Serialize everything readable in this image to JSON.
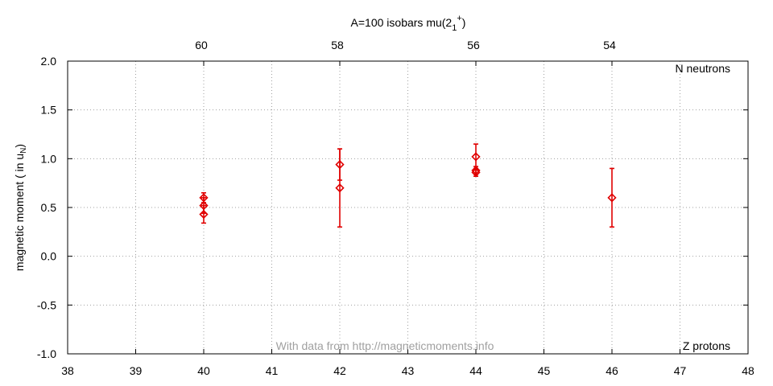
{
  "chart_data": {
    "type": "scatter",
    "title": "A=100 isobars mu(2",
    "title_sub": "1",
    "title_sup": "+",
    "title_close": ")",
    "xlabel": "Z protons",
    "x2label": "N neutrons",
    "ylabel": "magnetic moment ( in u",
    "ylabel_sub": "N",
    "ylabel_close": ")",
    "watermark": "With data from http://magneticmoments.info",
    "xlim": [
      38,
      48
    ],
    "ylim": [
      -1.0,
      2.0
    ],
    "x_ticks": [
      "38",
      "39",
      "40",
      "41",
      "42",
      "43",
      "44",
      "45",
      "46",
      "47",
      "48"
    ],
    "y_ticks": [
      "-1.0",
      "-0.5",
      "0.0",
      "0.5",
      "1.0",
      "1.5",
      "2.0"
    ],
    "x2_ticks": [
      {
        "z": 40,
        "label": "60"
      },
      {
        "z": 42,
        "label": "58"
      },
      {
        "z": 44,
        "label": "56"
      },
      {
        "z": 46,
        "label": "54"
      }
    ],
    "grid": true,
    "series": [
      {
        "color": "#e00000",
        "points": [
          {
            "x": 40,
            "y": 0.6,
            "err": 0.05
          },
          {
            "x": 40,
            "y": 0.52,
            "err": 0.08
          },
          {
            "x": 40,
            "y": 0.43,
            "err": 0.09
          },
          {
            "x": 42,
            "y": 0.94,
            "err": 0.16
          },
          {
            "x": 42,
            "y": 0.7,
            "err": 0.4
          },
          {
            "x": 44,
            "y": 1.02,
            "err": 0.13
          },
          {
            "x": 44,
            "y": 0.88,
            "err": 0.04
          },
          {
            "x": 44,
            "y": 0.86,
            "err": 0.04
          },
          {
            "x": 46,
            "y": 0.6,
            "err": 0.3
          }
        ]
      }
    ]
  }
}
